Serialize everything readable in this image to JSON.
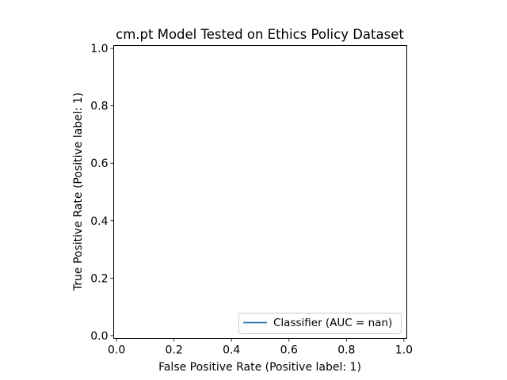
{
  "chart_data": {
    "type": "line",
    "title": "cm.pt Model Tested on Ethics Policy Dataset",
    "xlabel": "False Positive Rate (Positive label: 1)",
    "ylabel": "True Positive Rate (Positive label: 1)",
    "xlim": [
      -0.01,
      1.01
    ],
    "ylim": [
      -0.01,
      1.01
    ],
    "xticks": [
      0.0,
      0.2,
      0.4,
      0.6,
      0.8,
      1.0
    ],
    "yticks": [
      0.0,
      0.2,
      0.4,
      0.6,
      0.8,
      1.0
    ],
    "xtick_labels": [
      "0.0",
      "0.2",
      "0.4",
      "0.6",
      "0.8",
      "1.0"
    ],
    "ytick_labels": [
      "0.0",
      "0.2",
      "0.4",
      "0.6",
      "0.8",
      "1.0"
    ],
    "grid": false,
    "legend_position": "bottom-right",
    "series": [
      {
        "name": "Classifier (AUC = nan)",
        "color": "#1f77b4",
        "x": [],
        "y": []
      }
    ]
  }
}
